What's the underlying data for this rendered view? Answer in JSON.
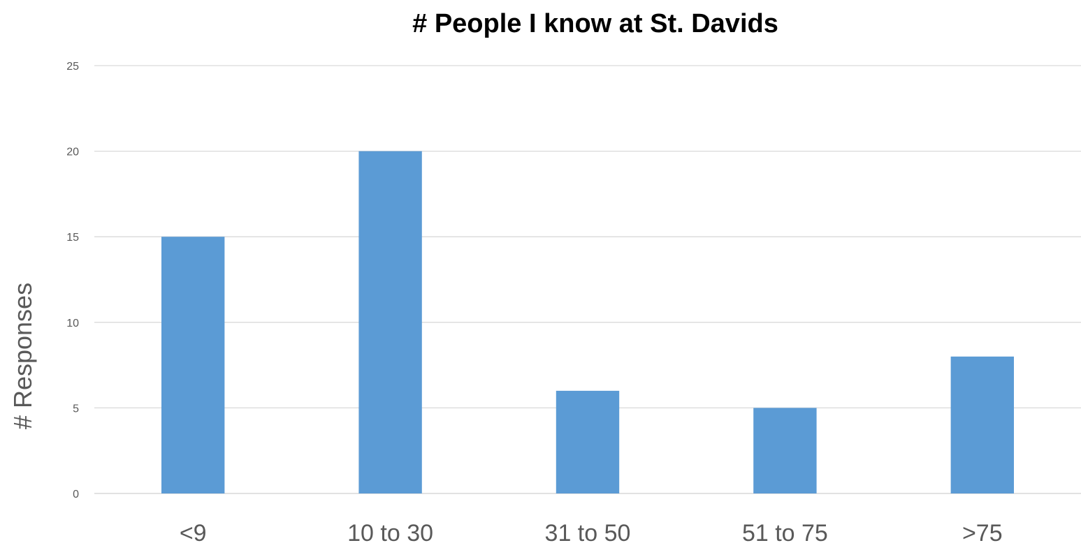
{
  "chart_data": {
    "type": "bar",
    "title": "# People I know at St. Davids",
    "xlabel": "",
    "ylabel": "# Responses",
    "categories": [
      "<9",
      "10 to 30",
      "31 to 50",
      "51 to 75",
      ">75"
    ],
    "values": [
      15,
      20,
      6,
      5,
      8
    ],
    "ylim": [
      0,
      25
    ],
    "yticks": [
      0,
      5,
      10,
      15,
      20,
      25
    ],
    "grid": true,
    "legend": "none",
    "colors": {
      "bar": "#5b9bd5",
      "grid": "#d9d9d9",
      "text": "#595959",
      "title": "#000000"
    }
  }
}
